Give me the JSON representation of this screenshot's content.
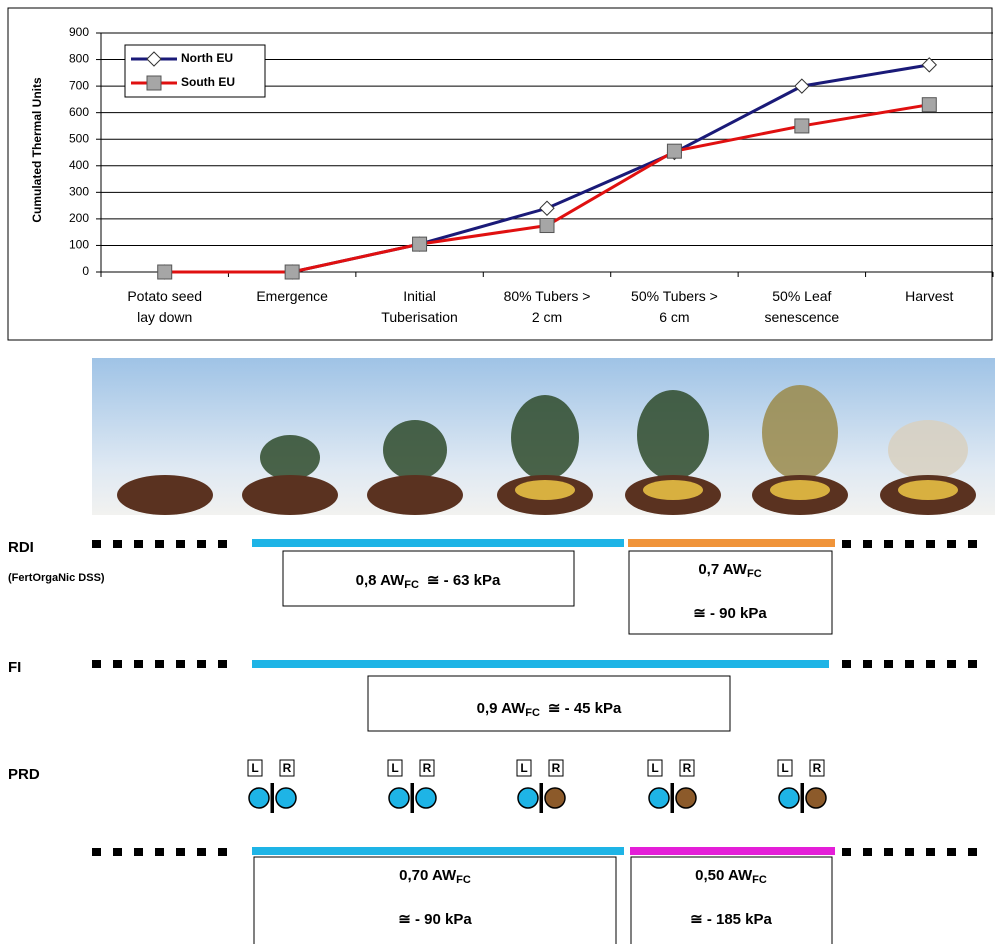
{
  "chart_data": {
    "type": "line",
    "y_label": "Cumulated Thermal Units",
    "categories": [
      "Potato seed\nlay down",
      "Emergence",
      "Initial\nTuberisation",
      "80% Tubers >\n2 cm",
      "50% Tubers >\n6 cm",
      "50% Leaf\nsenescence",
      "Harvest"
    ],
    "series": [
      {
        "name": "North EU",
        "color": "#1a1a78",
        "marker": "diamond",
        "marker_color": "#ffffff",
        "values": [
          0,
          0,
          105,
          240,
          450,
          700,
          780
        ]
      },
      {
        "name": "South EU",
        "color": "#e01010",
        "marker": "square",
        "marker_color": "#a6a6a6",
        "values": [
          0,
          0,
          105,
          175,
          455,
          550,
          630
        ]
      }
    ],
    "ylim": [
      0,
      900
    ],
    "yticks": [
      0,
      100,
      200,
      300,
      400,
      500,
      600,
      700,
      800,
      900
    ],
    "grid": true,
    "legend": "upper left"
  },
  "rdi": {
    "label": "RDI",
    "note": "(FertOrgaNic DSS)",
    "boxes": [
      {
        "amount": "0,8 AW",
        "sub": "FC",
        "pressure": "≅  - 63 kPa"
      },
      {
        "amount": "0,7 AW",
        "sub": "FC",
        "pressure": "≅  - 90 kPa"
      }
    ]
  },
  "fi": {
    "label": "FI",
    "boxes": [
      {
        "amount": "0,9  AW",
        "sub": "FC",
        "pressure": "≅  - 45 kPa"
      }
    ]
  },
  "prd": {
    "label": "PRD",
    "icons": [
      {
        "left": "L",
        "right": "R",
        "left_color": "#1eb4e6",
        "right_color": "#1eb4e6"
      },
      {
        "left": "L",
        "right": "R",
        "left_color": "#1eb4e6",
        "right_color": "#1eb4e6"
      },
      {
        "left": "L",
        "right": "R",
        "left_color": "#1eb4e6",
        "right_color": "#8c5a2a"
      },
      {
        "left": "L",
        "right": "R",
        "left_color": "#1eb4e6",
        "right_color": "#8c5a2a"
      },
      {
        "left": "L",
        "right": "R",
        "left_color": "#1eb4e6",
        "right_color": "#8c5a2a"
      }
    ],
    "boxes": [
      {
        "amount": "0,70 AW",
        "sub": "FC",
        "pressure": "≅  - 90 kPa"
      },
      {
        "amount": "0,50 AW",
        "sub": "FC",
        "pressure": "≅  - 185 kPa"
      }
    ]
  }
}
